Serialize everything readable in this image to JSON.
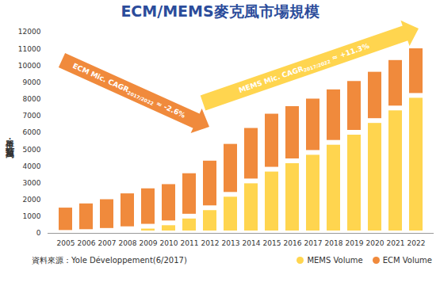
{
  "chart_data": {
    "type": "bar",
    "title": "ECM/MEMS麥克風市場規模",
    "y_label": "單位：百萬顆",
    "source": "資料來源：Yole Développement(6/2017)",
    "categories": [
      "2005",
      "2006",
      "2007",
      "2008",
      "2009",
      "2010",
      "2011",
      "2012",
      "2013",
      "2014",
      "2015",
      "2016",
      "2017",
      "2018",
      "2019",
      "2020",
      "2021",
      "2022"
    ],
    "series": [
      {
        "name": "MEMS Volume",
        "color": "#ffd54f",
        "values": [
          30,
          80,
          150,
          250,
          400,
          600,
          1000,
          1500,
          2300,
          3100,
          3800,
          4300,
          4800,
          5400,
          6000,
          6700,
          7450,
          8200
        ]
      },
      {
        "name": "ECM Volume",
        "color": "#f08a3c",
        "values": [
          1620,
          1820,
          2000,
          2250,
          2400,
          2450,
          2700,
          2950,
          3150,
          3300,
          3450,
          3400,
          3350,
          3300,
          3200,
          3050,
          3000,
          2950
        ]
      }
    ],
    "stacked": true,
    "ylim": [
      0,
      12000
    ],
    "yticks": [
      0,
      1000,
      2000,
      3000,
      4000,
      5000,
      6000,
      7000,
      8000,
      9000,
      10000,
      11000,
      12000
    ],
    "grid": false,
    "legend": "bottom",
    "annotations": [
      {
        "series": "ECM Volume",
        "label": "ECM Mic. CAGR",
        "period": "2017/2022",
        "text": "≈ -2.6%"
      },
      {
        "series": "MEMS Volume",
        "label": "MEMS Mic. CAGR",
        "period": "2017/2022",
        "text": "≈ +11.3%"
      }
    ]
  }
}
